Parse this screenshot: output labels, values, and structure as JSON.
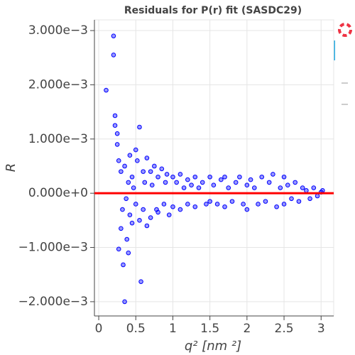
{
  "chart_data": {
    "type": "scatter",
    "title": "Residuals for P(r) fit (SASDC29)",
    "xlabel": "q² [nm ²]",
    "ylabel": "R",
    "xlim": [
      -0.058,
      3.17
    ],
    "ylim": [
      -0.002263,
      0.003197
    ],
    "xticks": [
      0,
      0.5,
      1,
      1.5,
      2,
      2.5,
      3
    ],
    "yticks": [
      {
        "value": -0.002,
        "label": "−2.000e−3"
      },
      {
        "value": -0.001,
        "label": "−1.000e−3"
      },
      {
        "value": 0,
        "label": "0.000e+0"
      },
      {
        "value": 0.001,
        "label": "1.000e−3"
      },
      {
        "value": 0.002,
        "label": "2.000e−3"
      },
      {
        "value": 0.003,
        "label": "3.000e−3"
      }
    ],
    "grid": true,
    "color": "#0000ff",
    "reference_line": {
      "y": 0,
      "color": "#ff0000"
    },
    "x": [
      0.1,
      0.2,
      0.2,
      0.22,
      0.22,
      0.25,
      0.25,
      0.27,
      0.27,
      0.3,
      0.3,
      0.32,
      0.33,
      0.35,
      0.35,
      0.37,
      0.38,
      0.4,
      0.4,
      0.42,
      0.42,
      0.45,
      0.45,
      0.47,
      0.5,
      0.5,
      0.52,
      0.55,
      0.55,
      0.57,
      0.6,
      0.6,
      0.62,
      0.65,
      0.65,
      0.7,
      0.7,
      0.72,
      0.75,
      0.78,
      0.8,
      0.8,
      0.85,
      0.88,
      0.9,
      0.92,
      0.95,
      1.0,
      1.0,
      1.05,
      1.1,
      1.1,
      1.15,
      1.2,
      1.2,
      1.25,
      1.3,
      1.3,
      1.35,
      1.4,
      1.45,
      1.5,
      1.5,
      1.55,
      1.6,
      1.65,
      1.7,
      1.7,
      1.75,
      1.8,
      1.85,
      1.9,
      1.95,
      2.0,
      2.0,
      2.05,
      2.1,
      2.15,
      2.2,
      2.25,
      2.3,
      2.35,
      2.4,
      2.45,
      2.5,
      2.5,
      2.55,
      2.6,
      2.65,
      2.7,
      2.75,
      2.8,
      2.85,
      2.9,
      2.95,
      3.0,
      3.02
    ],
    "values": [
      0.0019,
      0.0029,
      0.00255,
      0.00143,
      0.00125,
      0.0011,
      0.0009,
      -0.00103,
      0.0006,
      -0.00065,
      0.0004,
      -0.0003,
      -0.00132,
      -0.002,
      0.0005,
      -0.0001,
      -0.00085,
      -0.0011,
      0.0002,
      0.0007,
      -0.0004,
      0.0003,
      -0.00055,
      0.0001,
      0.0008,
      -0.0002,
      0.0006,
      0.00122,
      -0.0005,
      -0.00163,
      0.0004,
      -0.0003,
      0.0002,
      0.00065,
      -0.0006,
      0.0004,
      -0.00045,
      0.00015,
      0.0005,
      -0.0003,
      0.0003,
      -0.00035,
      0.00045,
      -0.0002,
      0.0002,
      0.00035,
      -0.0004,
      0.0003,
      -0.00025,
      0.0002,
      0.00035,
      -0.0003,
      0.0001,
      0.00025,
      -0.0002,
      0.00015,
      0.0003,
      -0.00025,
      0.0001,
      0.0002,
      -0.0002,
      0.0003,
      -0.00015,
      0.00015,
      -0.0002,
      0.00025,
      0.0003,
      -0.00025,
      0.0001,
      -0.00015,
      0.0002,
      0.0003,
      -0.0002,
      0.00015,
      -0.0003,
      0.00025,
      0.0001,
      -0.0002,
      0.0003,
      -0.00015,
      0.0002,
      0.00035,
      -0.00025,
      0.0001,
      0.0003,
      -0.0002,
      0.00015,
      -0.0001,
      0.0002,
      -0.00015,
      0.0001,
      5e-05,
      -0.0001,
      0.0001,
      -5e-05,
      2e-05,
      5e-05
    ]
  }
}
